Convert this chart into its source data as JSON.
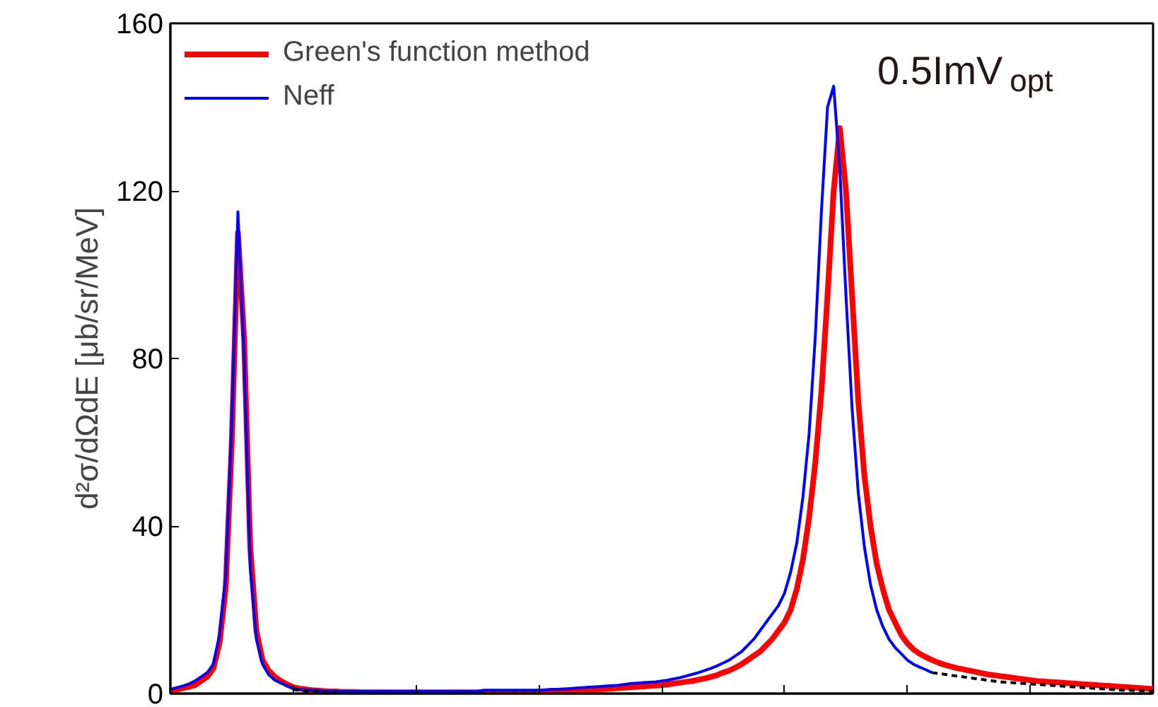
{
  "chart_data": {
    "type": "line",
    "ylabel": "d²σ/dΩdE [μb/sr/MeV]",
    "annotations": [
      "0.5ImV$_{opt}$"
    ],
    "categories": [
      null,
      null,
      null,
      null,
      null,
      null,
      null,
      null,
      null,
      null,
      null,
      null,
      null,
      null,
      null,
      null,
      null,
      null,
      null,
      null,
      null,
      null,
      null,
      null,
      null,
      null,
      null,
      null,
      null,
      null,
      null,
      null,
      null,
      null,
      null,
      null,
      null,
      null,
      null,
      null,
      null,
      null,
      null,
      null,
      null,
      null,
      null,
      null,
      null,
      null,
      null,
      null,
      null,
      null,
      null,
      null,
      null,
      null,
      null,
      null,
      null,
      null,
      null,
      null,
      null,
      null,
      null,
      null,
      null,
      null,
      null,
      null,
      null,
      null,
      null,
      null,
      null,
      null,
      null,
      null,
      null,
      null,
      null,
      null,
      null,
      null,
      null,
      null,
      null,
      null,
      null,
      null,
      null,
      null,
      null,
      null,
      null,
      null,
      null,
      null,
      null,
      null,
      null,
      null,
      null,
      null,
      null,
      null,
      null,
      null,
      null,
      null,
      null,
      null,
      null,
      null,
      null,
      null,
      null,
      null,
      null,
      null,
      null,
      null,
      null,
      null,
      null,
      null,
      null,
      null,
      null,
      null,
      null,
      null,
      null,
      null,
      null,
      null,
      null,
      null,
      null,
      null,
      null,
      null,
      null,
      null,
      null,
      null,
      null,
      null,
      null,
      null,
      null,
      null,
      null,
      null,
      null,
      null,
      null,
      null,
      null
    ],
    "ylim": [
      0,
      160
    ],
    "yticks": [
      0,
      40,
      80,
      120,
      160
    ],
    "grid": false,
    "legend": "top left",
    "series": [
      {
        "name": "Green's function method",
        "color": "#ff0000",
        "values": [
          0.5,
          0.9,
          1.3,
          1.6,
          2,
          3,
          4,
          6,
          12,
          25,
          60,
          110,
          85,
          35,
          15,
          8,
          5.5,
          4,
          3,
          2.2,
          1.5,
          1.2,
          1.0,
          0.8,
          0.7,
          0.6,
          0.5,
          0.5,
          0.4,
          0.4,
          0.4,
          0.3,
          0.3,
          0.3,
          0.3,
          0.3,
          0.3,
          0.3,
          0.3,
          0.3,
          0.3,
          0.3,
          0.3,
          0.3,
          0.3,
          0.3,
          0.3,
          0.3,
          0.3,
          0.3,
          0.3,
          0.4,
          0.4,
          0.4,
          0.4,
          0.4,
          0.4,
          0.4,
          0.4,
          0.4,
          0.4,
          0.5,
          0.5,
          0.6,
          0.6,
          0.7,
          0.7,
          0.8,
          0.8,
          0.9,
          1.0,
          1.1,
          1.2,
          1.3,
          1.4,
          1.5,
          1.6,
          1.7,
          1.8,
          1.9,
          2.0,
          2.2,
          2.4,
          2.6,
          2.8,
          3.0,
          3.3,
          3.6,
          4.0,
          4.4,
          5.0,
          5.5,
          6.2,
          7.0,
          8.0,
          9.0,
          10,
          11.5,
          13,
          15,
          17,
          20,
          25,
          32,
          42,
          55,
          72,
          95,
          120,
          135,
          120,
          95,
          70,
          52,
          40,
          31,
          25,
          20,
          17,
          14,
          12,
          10.5,
          9.5,
          8.7,
          8,
          7.4,
          6.9,
          6.5,
          6.1,
          5.8,
          5.5,
          5.2,
          4.9,
          4.6,
          4.4,
          4.2,
          4.0,
          3.8,
          3.6,
          3.4,
          3.2,
          3.0,
          2.9,
          2.8,
          2.7,
          2.6,
          2.5,
          2.4,
          2.3,
          2.2,
          2.1,
          2.0,
          1.9,
          1.8,
          1.7,
          1.6,
          1.5,
          1.4,
          1.3,
          1.2,
          1.1
        ]
      },
      {
        "name": "Neff",
        "color": "#0000ff",
        "values": [
          1,
          1.4,
          1.8,
          2.3,
          3,
          4,
          5,
          7,
          14,
          28,
          65,
          115,
          80,
          30,
          13,
          7,
          4.5,
          3.2,
          2.5,
          1.8,
          1.2,
          1.0,
          0.9,
          0.8,
          0.7,
          0.6,
          0.6,
          0.5,
          0.5,
          0.5,
          0.5,
          0.5,
          0.5,
          0.5,
          0.5,
          0.5,
          0.5,
          0.5,
          0.5,
          0.5,
          0.5,
          0.5,
          0.5,
          0.5,
          0.5,
          0.5,
          0.5,
          0.5,
          0.5,
          0.5,
          0.5,
          0.8,
          0.8,
          0.8,
          0.8,
          0.8,
          0.8,
          0.8,
          0.8,
          0.8,
          0.8,
          0.9,
          1.0,
          1.0,
          1.1,
          1.2,
          1.3,
          1.4,
          1.5,
          1.6,
          1.7,
          1.8,
          1.9,
          2.0,
          2.2,
          2.4,
          2.5,
          2.6,
          2.7,
          2.8,
          3.0,
          3.2,
          3.5,
          3.8,
          4.2,
          4.6,
          5.0,
          5.5,
          6,
          6.6,
          7.3,
          8,
          9,
          10,
          11.5,
          13,
          15,
          17,
          19,
          21,
          24,
          29,
          36,
          47,
          62,
          85,
          115,
          140,
          145,
          125,
          95,
          68,
          48,
          35,
          26,
          20,
          16,
          13,
          11,
          9.5,
          8,
          7,
          6.3,
          5.7,
          5,
          null,
          null,
          null,
          null,
          null,
          null,
          null,
          null,
          null,
          null,
          null,
          null,
          null,
          null,
          null,
          null,
          null,
          null,
          null,
          null,
          null,
          null,
          null,
          null,
          null,
          null,
          null,
          null,
          null,
          null,
          null,
          null,
          null,
          null,
          null,
          null
        ]
      },
      {
        "color": "#000000",
        "line_style": "dashed",
        "values": [
          null,
          null,
          null,
          null,
          null,
          null,
          null,
          null,
          null,
          null,
          null,
          null,
          null,
          null,
          null,
          null,
          null,
          null,
          null,
          null,
          1.0,
          0.8,
          0.6,
          0.5,
          0.4,
          0.3,
          0.2,
          0.1,
          0,
          0,
          0,
          0,
          0,
          0,
          0,
          0,
          0,
          0,
          0,
          0,
          0,
          0,
          0,
          0,
          0,
          0,
          0,
          0,
          0,
          0,
          0,
          0,
          0,
          0,
          0,
          0,
          0,
          0,
          0,
          0,
          0,
          null,
          null,
          null,
          null,
          null,
          null,
          null,
          null,
          null,
          null,
          null,
          null,
          null,
          null,
          null,
          null,
          null,
          null,
          null,
          null,
          null,
          null,
          null,
          null,
          null,
          null,
          null,
          null,
          null,
          null,
          null,
          null,
          null,
          null,
          null,
          null,
          null,
          null,
          null,
          null,
          null,
          null,
          null,
          null,
          null,
          null,
          null,
          null,
          null,
          null,
          null,
          null,
          null,
          null,
          null,
          null,
          null,
          null,
          null,
          null,
          null,
          null,
          null,
          5,
          4.8,
          4.6,
          4.4,
          4.2,
          4.0,
          3.8,
          3.6,
          3.4,
          3.2,
          3.0,
          2.8,
          2.7,
          2.6,
          2.5,
          2.4,
          2.3,
          2.2,
          2.1,
          2.0,
          1.9,
          1.8,
          1.7,
          1.6,
          1.5,
          1.4,
          1.3,
          1.2,
          1.1,
          1.0,
          0.9,
          0.8,
          0.8,
          0.7,
          0.7,
          0.6,
          0.6
        ]
      }
    ]
  }
}
